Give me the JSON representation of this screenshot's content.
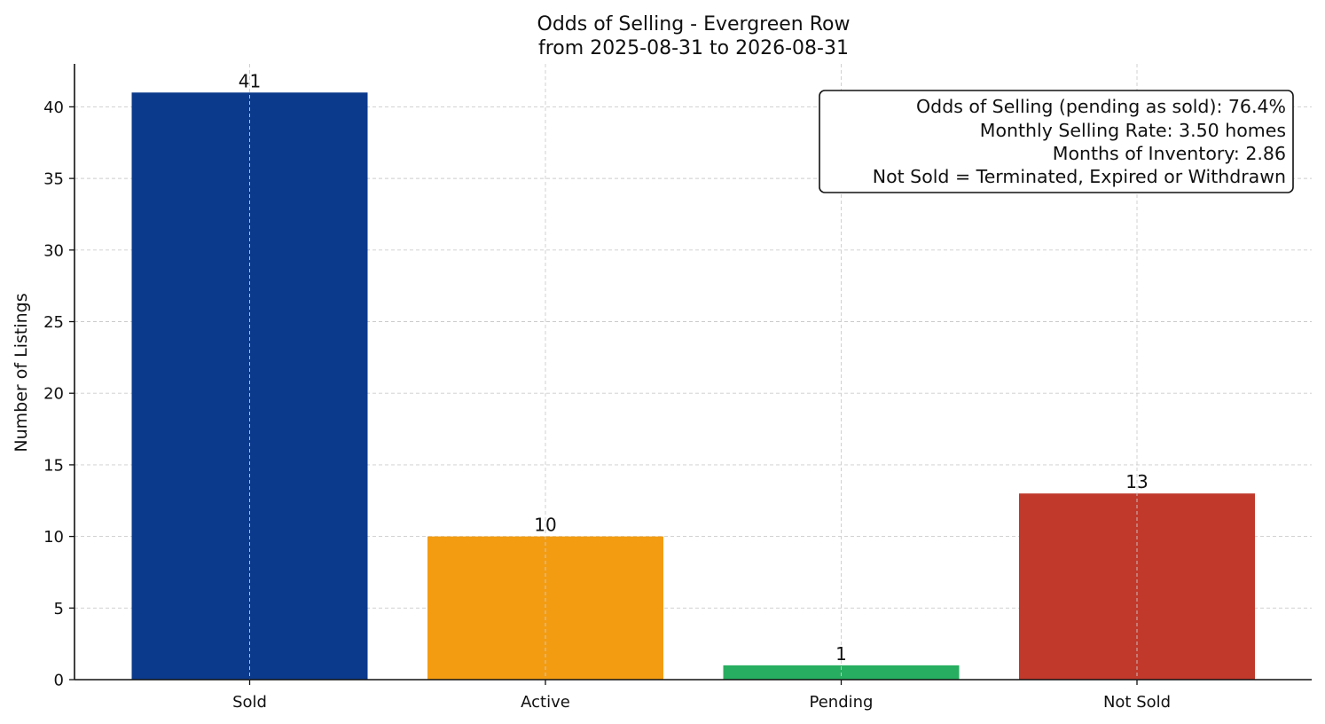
{
  "chart_data": {
    "type": "bar",
    "title": "Odds of Selling - Evergreen Row",
    "subtitle": "from 2025-08-31 to 2026-08-31",
    "xlabel": "",
    "ylabel": "Number of Listings",
    "categories": [
      "Sold",
      "Active",
      "Pending",
      "Not Sold"
    ],
    "values": [
      41,
      10,
      1,
      13
    ],
    "colors": [
      "#0b3a8c",
      "#f39c12",
      "#27ae60",
      "#c0392b"
    ],
    "ylim": [
      0,
      43
    ],
    "yticks": [
      0,
      5,
      10,
      15,
      20,
      25,
      30,
      35,
      40
    ],
    "grid": true,
    "info_box": {
      "placement": "top-right",
      "lines": [
        "Odds of Selling (pending as sold): 76.4%",
        "Monthly Selling Rate: 3.50 homes",
        "Months of Inventory: 2.86",
        "Not Sold = Terminated, Expired or Withdrawn"
      ]
    }
  }
}
